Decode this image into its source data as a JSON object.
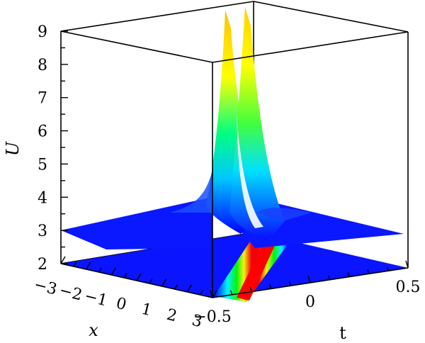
{
  "chart_data": {
    "type": "surface3d",
    "title": "",
    "axes": {
      "x": {
        "label": "x",
        "range": [
          -3,
          3
        ],
        "ticks": [
          "−3",
          "−2",
          "−1",
          "0",
          "1",
          "2",
          "3"
        ]
      },
      "t": {
        "label": "t",
        "range": [
          -0.5,
          0.5
        ],
        "ticks": [
          "−0.5",
          "0",
          "0.5"
        ]
      },
      "u": {
        "label": "U",
        "range": [
          2,
          9
        ],
        "ticks": [
          "2",
          "3",
          "4",
          "5",
          "6",
          "7",
          "8",
          "9"
        ]
      }
    },
    "surface": {
      "baseline": 3,
      "peak": 9,
      "description_shape": "twin sharp ridges along a line in the x-t plane",
      "colormap": [
        "#0000ff",
        "#00ffff",
        "#00ff00",
        "#ffff00",
        "#ff0000"
      ]
    },
    "projection": {
      "plane_level": 2,
      "colormap": [
        "#0000ff",
        "#00ffff",
        "#00ff00",
        "#ffff00",
        "#ff0000"
      ]
    },
    "grid": false,
    "box": true
  }
}
